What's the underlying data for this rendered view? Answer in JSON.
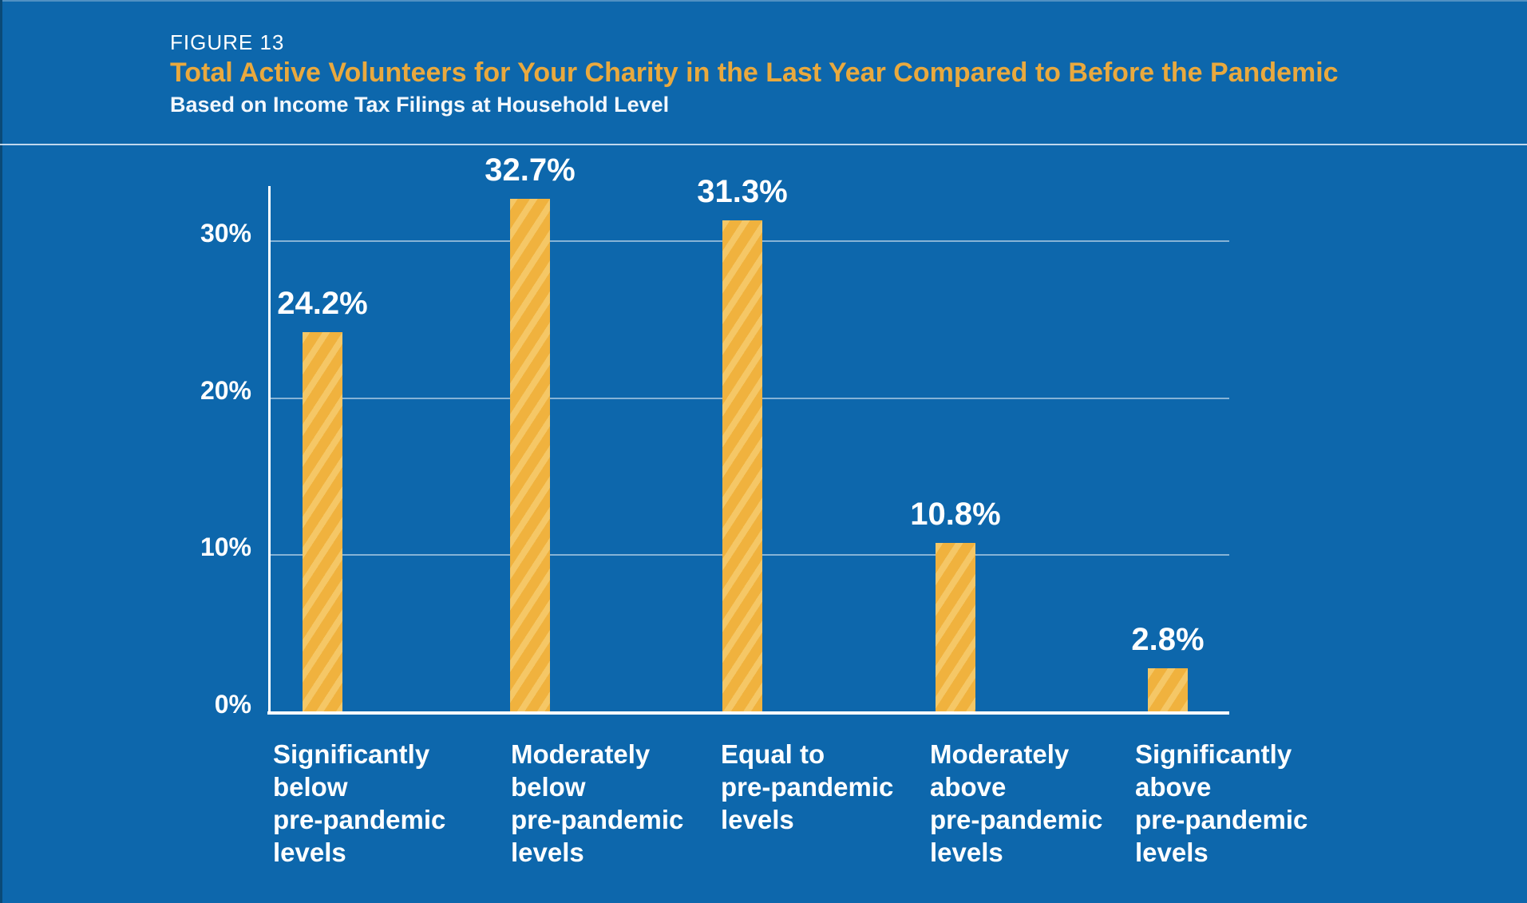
{
  "header": {
    "figure_label": "FIGURE 13",
    "title": "Total Active Volunteers for Your Charity in the Last Year Compared to Before the Pandemic",
    "subtitle": "Based on Income Tax Filings at Household Level"
  },
  "colors": {
    "background_blue": "#0d67ac",
    "title_gold": "#e9a93e",
    "bar_gold": "#f0b23e",
    "bar_stripe_light": "#f5c766",
    "axis_line": "#ffffff",
    "gridline": "rgba(255,255,255,0.5)",
    "text": "#ffffff"
  },
  "chart_data": {
    "type": "bar",
    "title": "Total Active Volunteers for Your Charity in the Last Year Compared to Before the Pandemic",
    "subtitle": "Based on Income Tax Filings at Household Level",
    "categories": [
      "Significantly below pre-pandemic levels",
      "Moderately below pre-pandemic levels",
      "Equal to pre-pandemic levels",
      "Moderately above pre-pandemic levels",
      "Significantly above pre-pandemic levels"
    ],
    "category_lines": [
      [
        "Significantly",
        "below",
        "pre-pandemic",
        "levels"
      ],
      [
        "Moderately",
        "below",
        "pre-pandemic",
        "levels"
      ],
      [
        "Equal to",
        "pre-pandemic",
        "levels"
      ],
      [
        "Moderately",
        "above",
        "pre-pandemic",
        "levels"
      ],
      [
        "Significantly",
        "above",
        "pre-pandemic",
        "levels"
      ]
    ],
    "values": [
      24.2,
      32.7,
      31.3,
      10.8,
      2.8
    ],
    "value_labels": [
      "24.2%",
      "32.7%",
      "31.3%",
      "10.8%",
      "2.8%"
    ],
    "y_ticks": [
      {
        "label": "0%",
        "value": 0
      },
      {
        "label": "10%",
        "value": 10
      },
      {
        "label": "20%",
        "value": 20
      },
      {
        "label": "30%",
        "value": 30
      }
    ],
    "ylim": [
      0,
      33.5
    ],
    "xlabel": "",
    "ylabel": "",
    "grid": "horizontal",
    "legend": "none",
    "bar_style": "diagonal-striped gold"
  }
}
